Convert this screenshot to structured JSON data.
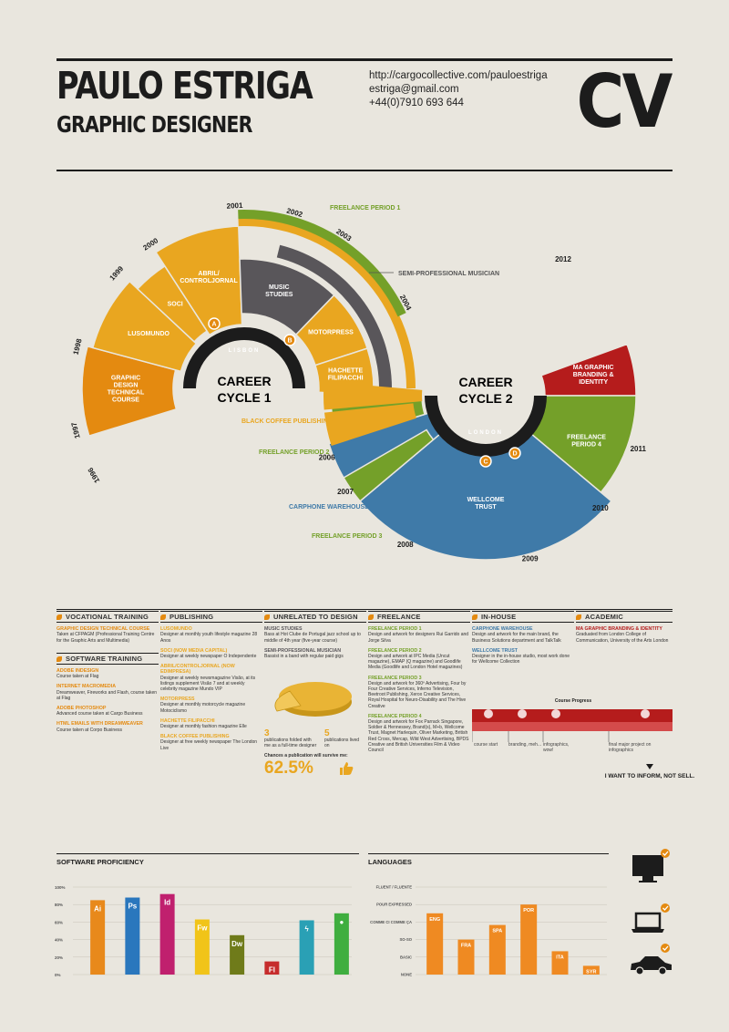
{
  "header": {
    "name": "PAULO ESTRIGA",
    "role": "GRAPHIC DESIGNER",
    "website": "http://cargocollective.com/pauloestriga",
    "email": "estriga@gmail.com",
    "phone": "+44(0)7910 693 644",
    "cv": "CV"
  },
  "cycle1": {
    "title_line1": "CAREER",
    "title_line2": "CYCLE 1",
    "location": "LISBON",
    "segments": [
      "GRAPHIC DESIGN TECHNICAL COURSE",
      "LUSOMUNDO",
      "SOCI",
      "ABRIL/ CONTROLJORNAL",
      "MUSIC STUDIES",
      "MOTORPRESS",
      "HACHETTE FILIPACCHI"
    ],
    "years": [
      "1996",
      "1997",
      "1998",
      "1999",
      "2000",
      "2001",
      "2002",
      "2003",
      "2004",
      "2005"
    ],
    "markers": [
      "A",
      "B"
    ]
  },
  "cycle2": {
    "title_line1": "CAREER",
    "title_line2": "CYCLE 2",
    "location": "LONDON",
    "segments": [
      "MA GRAPHIC BRANDING & IDENTITY",
      "FREELANCE PERIOD 4",
      "WELLCOME TRUST",
      "CARPHONE WAREHOUSE"
    ],
    "years": [
      "2006",
      "2007",
      "2008",
      "2009",
      "2010",
      "2011",
      "2012"
    ],
    "markers": [
      "C",
      "D"
    ]
  },
  "callouts": {
    "freelance1": "FREELANCE PERIOD 1",
    "semipro": "SEMI-PROFESSIONAL MUSICIAN",
    "blackcoffee": "BLACK COFFEE PUBLISHING",
    "freelance2": "FREELANCE PERIOD 2",
    "carphone": "CARPHONE WAREHOUSE",
    "freelance3": "FREELANCE PERIOD 3"
  },
  "columns": {
    "vocational": {
      "title": "VOCATIONAL TRAINING",
      "items": [
        {
          "title": "GRAPHIC DESIGN TECHNICAL COURSE",
          "desc": "Taken at CFPAGM (Professional Training Centre for the Graphic Arts and Multimedia)"
        }
      ]
    },
    "software_training": {
      "title": "SOFTWARE TRAINING",
      "items": [
        {
          "title": "ADOBE INDESIGN",
          "desc": "Course taken at Flag"
        },
        {
          "title": "INTERNET MACROMEDIA",
          "desc": "Dreamweaver, Fireworks and Flash, course taken at Flag"
        },
        {
          "title": "ADOBE PHOTOSHOP",
          "desc": "Advanced course taken at Cargo Business"
        },
        {
          "title": "HTML EMAILS WITH DREAMWEAVER",
          "desc": "Course taken at Corpo Business"
        }
      ]
    },
    "publishing": {
      "title": "PUBLISHING",
      "items": [
        {
          "title": "LUSOMUNDO",
          "desc": "Designer at monthly youth lifestyle magazine 28 Anos"
        },
        {
          "title": "SOCI (now Media Capital)",
          "desc": "Designer at weekly newspaper O Independente"
        },
        {
          "title": "ABRIL/CONTROLJORNAL (now Edimpresa)",
          "desc": "Designer at weekly newsmagazine Visão, at its listings supplement Visão 7 and at weekly celebrity magazine Mundo VIP"
        },
        {
          "title": "MOTORPRESS",
          "desc": "Designer at monthly motorcycle magazine Motociclismo"
        },
        {
          "title": "HACHETTE FILIPACCHI",
          "desc": "Designer at monthly fashion magazine Elle"
        },
        {
          "title": "BLACK COFFEE PUBLISHING",
          "desc": "Designer at free weekly newspaper The London Live"
        }
      ]
    },
    "unrelated": {
      "title": "UNRELATED TO DESIGN",
      "items": [
        {
          "title": "MUSIC STUDIES",
          "desc": "Bass at Hot Clube de Portugal jazz school up to middle of 4th year (five-year course)"
        },
        {
          "title": "SEMI-PROFESSIONAL MUSICIAN",
          "desc": "Bassist in a band with regular paid gigs"
        }
      ],
      "pie_left_num": "3",
      "pie_left_text": "publications folded with me as a full-time designer",
      "pie_right_num": "5",
      "pie_right_text": "publications lived on",
      "chances": "Chances a publication will survive me:",
      "percent": "62.5%"
    },
    "freelance": {
      "title": "FREELANCE",
      "items": [
        {
          "title": "FREELANCE PERIOD 1",
          "desc": "Design and artwork for designers Rui Garrido and Jorge Silva"
        },
        {
          "title": "FREELANCE PERIOD 2",
          "desc": "Design and artwork at IPC Media (Uncut magazine), EMAP (Q magazine) and Goodlife Media (Goodlife and London Hotel magazines)"
        },
        {
          "title": "FREELANCE PERIOD 3",
          "desc": "Design and artwork for 360º Advertising, Four by Four Creative Services, Inferno Television, Beetroot Publishing, Xerox Creative Services, Royal Hospital for Neuro-Disability and The Hive Creative"
        },
        {
          "title": "FREELANCE PERIOD 4",
          "desc": "Design and artwork for Fox Parrack Singapore, Soldier & Hennessey, Brand(s), M+b, Wellcome Trust, Magnet Harlequin, Oliver Marketing, British Red Cross, Mercap, Wild West Advertising, BPDS Creative and British Universities Film & Video Council"
        }
      ]
    },
    "inhouse": {
      "title": "IN-HOUSE",
      "items": [
        {
          "title": "CARPHONE WAREHOUSE",
          "desc": "Design and artwork for the main brand, the Business Solutions department and TalkTalk"
        },
        {
          "title": "WELLCOME TRUST",
          "desc": "Designer in the in-house studio, most work done for Wellcome Collection"
        }
      ]
    },
    "academic": {
      "title": "ACADEMIC",
      "items": [
        {
          "title": "MA GRAPHIC BRANDING & IDENTITY",
          "desc": "Graduated from London College of Communication, University of the Arts London"
        }
      ],
      "progress_label": "Course Progress",
      "progress_steps": [
        "course start",
        "branding, meh...",
        "infographics, wow!",
        "final major project on infographics"
      ],
      "motto": "I WANT TO INFORM, NOT SELL."
    }
  },
  "software": {
    "title": "SOFTWARE PROFICIENCY",
    "y_ticks": [
      "100%",
      "80%",
      "60%",
      "40%",
      "20%",
      "0%"
    ]
  },
  "languages": {
    "title": "LANGUAGES",
    "levels": [
      "FLUENT / FLUENTE",
      "POUR EXPRESSED",
      "COMME CI COMME ÇA",
      "SO-SO",
      "BASIC",
      "NONE"
    ]
  },
  "chart_data": [
    {
      "type": "bar",
      "title": "SOFTWARE PROFICIENCY",
      "categories": [
        "Ai",
        "Ps",
        "Id",
        "Fw",
        "Dw",
        "Fl",
        "Flash Lite",
        "Office"
      ],
      "values": [
        85,
        88,
        92,
        63,
        45,
        15,
        62,
        70
      ],
      "colors": [
        "#e8891b",
        "#2a77bd",
        "#c0206e",
        "#f1c419",
        "#6f7b1a",
        "#c62c2c",
        "#2aa0b5",
        "#3fae3f"
      ],
      "ylim": [
        0,
        100
      ]
    },
    {
      "type": "bar",
      "title": "LANGUAGES",
      "categories": [
        "ENG",
        "FRA",
        "SPA",
        "POR",
        "ITA",
        "SYR"
      ],
      "values": [
        4.2,
        2.4,
        3.4,
        4.8,
        1.6,
        0.6
      ],
      "color": "#ef8a22",
      "ylim": [
        0,
        6
      ]
    }
  ],
  "colors": {
    "orange": "#e48a10",
    "yellow": "#e9a620",
    "green": "#74a029",
    "blue": "#3f7aa8",
    "red": "#b51c1c",
    "grey": "#59565a",
    "background": "#e9e6de"
  },
  "icons": [
    "desktop-icon",
    "laptop-icon",
    "car-icon",
    "thumbs-up-icon"
  ]
}
